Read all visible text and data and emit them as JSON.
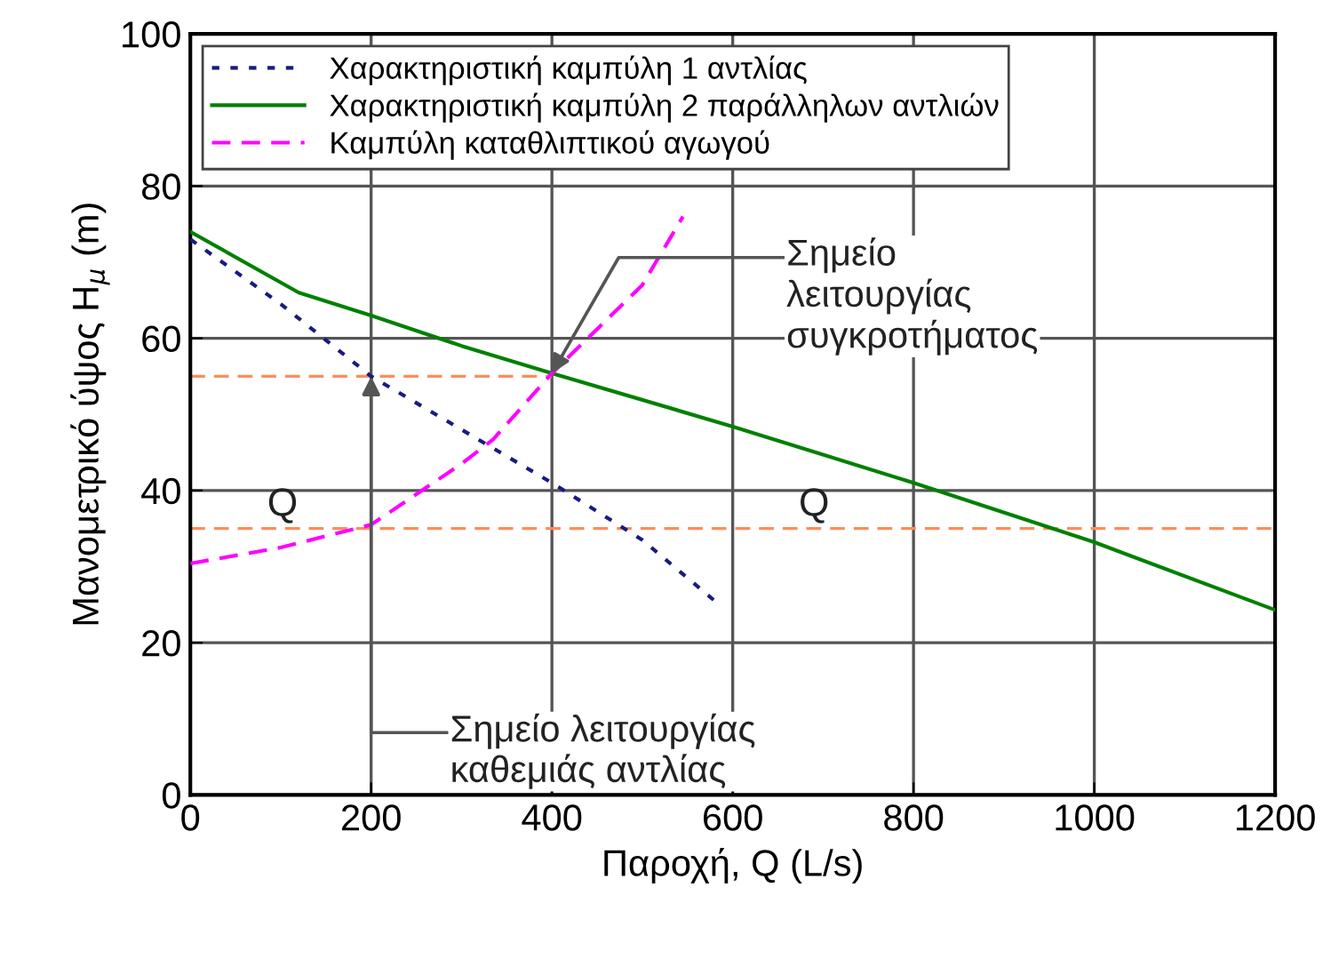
{
  "chart_data": {
    "type": "line",
    "xlabel": "Παροχή, Q (L/s)",
    "ylabel": "Μανομετρικό ύψος H$_{μ}$ (m)",
    "xlim": [
      0,
      1200
    ],
    "xticks": [
      0,
      200,
      400,
      600,
      800,
      1000,
      1200
    ],
    "ylim": [
      0,
      100
    ],
    "yticks": [
      0,
      20,
      40,
      60,
      80,
      100
    ],
    "grid": true,
    "legend": "top left",
    "marker": "none",
    "series": [
      {
        "name": "Χαρακτηριστική καμπύλη 1 αντλίας",
        "color": "#1a1a80",
        "line_style": "dotted",
        "x": [
          0,
          100,
          200,
          300,
          400,
          500,
          580
        ],
        "values": [
          73,
          64.5,
          55,
          48,
          41,
          33.5,
          25.5
        ]
      },
      {
        "name": "Χαρακτηριστική καμπύλη 2 παράλληλων αντλιών",
        "color": "#008000",
        "line_style": "solid",
        "x": [
          0,
          120,
          200,
          300,
          400,
          600,
          800,
          1000,
          1200
        ],
        "values": [
          74,
          66,
          63,
          59,
          55.4,
          48.4,
          41,
          33.2,
          24.3
        ]
      },
      {
        "name": "Καμπύλη καταθλιπτικού αγωγού",
        "color": "#ff00ff",
        "line_style": "dashed",
        "x": [
          0,
          100,
          200,
          300,
          335,
          400,
          500,
          545
        ],
        "values": [
          30.4,
          32.5,
          35.5,
          43.5,
          46.7,
          55.4,
          67,
          76
        ]
      }
    ],
    "annotations": [
      {
        "text": "Σημείο\nλειτουργίας\nσυγκροτήματος",
        "x": 400,
        "y": 55.4
      },
      {
        "text": "Σημείο λειτουργίας\nκαθεμιάς αντλίας",
        "x": 200,
        "y": 55
      },
      "Q",
      "Q"
    ],
    "ref_lines": [
      {
        "axis": "y",
        "value": 55,
        "color": "#ff8c5a",
        "line_style": "dashed"
      },
      {
        "axis": "y",
        "value": 35,
        "color": "#ff8c5a",
        "line_style": "dashed"
      }
    ]
  }
}
